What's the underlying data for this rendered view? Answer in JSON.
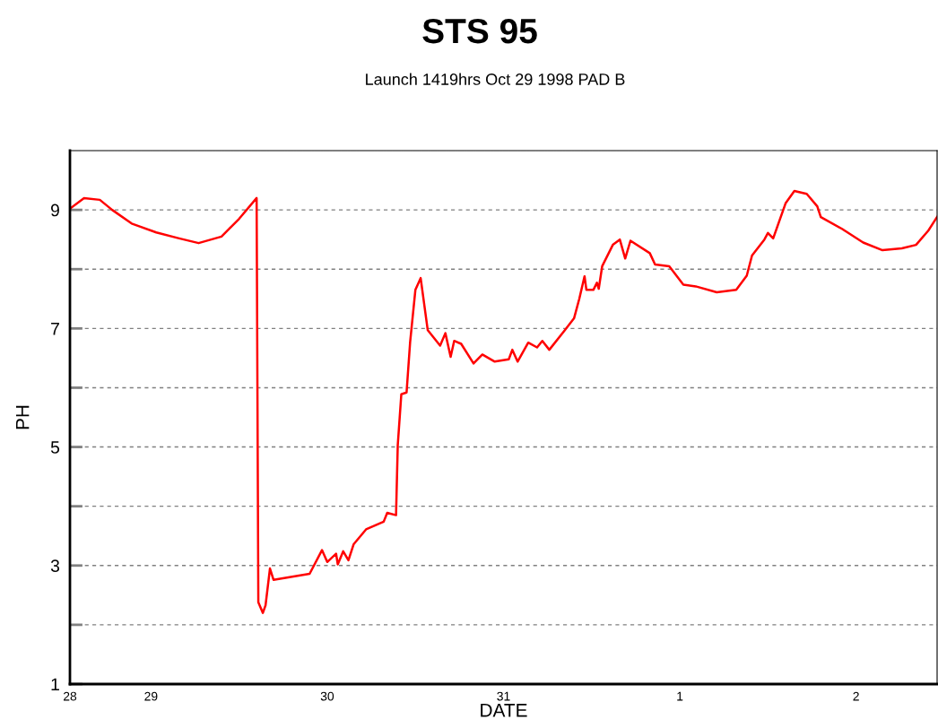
{
  "chart_data": {
    "type": "line",
    "title": "STS 95",
    "subtitle": "Launch 1419hrs Oct 29 1998 PAD B",
    "xlabel": "DATE",
    "ylabel": "PH",
    "x": [
      "1998-10-28T12:58",
      "1998-10-28T14:53",
      "1998-10-28T17:02",
      "1998-10-28T18:43",
      "1998-10-28T21:22",
      "1998-10-29T00:43",
      "1998-10-29T03:50",
      "1998-10-29T06:29",
      "1998-10-29T09:36",
      "1998-10-29T12:00",
      "1998-10-29T14:23",
      "1998-10-29T14:30",
      "1998-10-29T14:37",
      "1998-10-29T15:14",
      "1998-10-29T15:36",
      "1998-10-29T16:12",
      "1998-10-29T16:41",
      "1998-10-29T21:36",
      "1998-10-29T23:17",
      "1998-10-30T00:00",
      "1998-10-30T01:12",
      "1998-10-30T01:26",
      "1998-10-30T02:10",
      "1998-10-30T02:53",
      "1998-10-30T03:36",
      "1998-10-30T05:17",
      "1998-10-30T07:41",
      "1998-10-30T08:10",
      "1998-10-30T09:22",
      "1998-10-30T09:36",
      "1998-10-30T10:05",
      "1998-10-30T10:48",
      "1998-10-30T11:17",
      "1998-10-30T12:00",
      "1998-10-30T12:43",
      "1998-10-30T13:41",
      "1998-10-30T15:22",
      "1998-10-30T16:05",
      "1998-10-30T16:48",
      "1998-10-30T17:17",
      "1998-10-30T18:14",
      "1998-10-30T19:55",
      "1998-10-30T21:07",
      "1998-10-30T22:48",
      "1998-10-31T00:43",
      "1998-10-31T01:12",
      "1998-10-31T01:55",
      "1998-10-31T03:22",
      "1998-10-31T04:34",
      "1998-10-31T05:17",
      "1998-10-31T06:14",
      "1998-10-31T08:24",
      "1998-10-31T09:36",
      "1998-10-31T10:19",
      "1998-10-31T11:02",
      "1998-10-31T11:17",
      "1998-10-31T12:14",
      "1998-10-31T12:43",
      "1998-10-31T12:58",
      "1998-10-31T13:26",
      "1998-10-31T14:53",
      "1998-10-31T15:50",
      "1998-10-31T16:34",
      "1998-10-31T17:17",
      "1998-10-31T19:55",
      "1998-10-31T20:38",
      "1998-10-31T22:34",
      "1998-11-01T00:29",
      "1998-11-01T02:10",
      "1998-11-01T05:02",
      "1998-11-01T07:41",
      "1998-11-01T09:07",
      "1998-11-01T09:50",
      "1998-11-01T11:31",
      "1998-11-01T12:00",
      "1998-11-01T12:43",
      "1998-11-01T14:24",
      "1998-11-01T15:36",
      "1998-11-01T17:17",
      "1998-11-01T18:43",
      "1998-11-01T19:12",
      "1998-11-01T22:05",
      "1998-11-02T00:58",
      "1998-11-02T03:36",
      "1998-11-02T06:14",
      "1998-11-02T08:10",
      "1998-11-02T09:50",
      "1998-11-02T11:02"
    ],
    "series": [
      {
        "color": "#ff0000",
        "values": [
          9.02,
          9.2,
          9.17,
          9.0,
          8.77,
          8.62,
          8.52,
          8.44,
          8.55,
          8.85,
          9.2,
          5.79,
          2.38,
          2.2,
          2.33,
          2.95,
          2.76,
          2.86,
          3.26,
          3.06,
          3.2,
          3.02,
          3.24,
          3.09,
          3.36,
          3.61,
          3.74,
          3.89,
          3.85,
          5.03,
          5.89,
          5.92,
          6.77,
          7.65,
          7.85,
          6.97,
          6.71,
          6.92,
          6.52,
          6.79,
          6.74,
          6.41,
          6.56,
          6.44,
          6.48,
          6.64,
          6.44,
          6.76,
          6.68,
          6.79,
          6.64,
          6.98,
          7.17,
          7.5,
          7.88,
          7.65,
          7.65,
          7.77,
          7.67,
          8.05,
          8.41,
          8.5,
          8.18,
          8.48,
          8.27,
          8.08,
          8.05,
          7.74,
          7.71,
          7.61,
          7.65,
          7.89,
          8.23,
          8.5,
          8.61,
          8.52,
          9.11,
          9.32,
          9.27,
          9.06,
          8.88,
          8.68,
          8.45,
          8.32,
          8.35,
          8.41,
          8.65,
          8.88
        ]
      }
    ],
    "xlim": [
      "1998-10-28T12:58",
      "1998-11-02T11:02"
    ],
    "xticks": [
      {
        "value": "1998-10-28T12:58",
        "label": "28"
      },
      {
        "value": "1998-10-29",
        "label": "29"
      },
      {
        "value": "1998-10-30",
        "label": "30"
      },
      {
        "value": "1998-10-31",
        "label": "31"
      },
      {
        "value": "1998-11-01",
        "label": "1"
      },
      {
        "value": "1998-11-02",
        "label": "2"
      }
    ],
    "ylim": [
      1,
      10
    ],
    "yticks": [
      1,
      {
        "value": 2,
        "label": null
      },
      3,
      {
        "value": 4,
        "label": null
      },
      5,
      {
        "value": 6,
        "label": null
      },
      7,
      {
        "value": 8,
        "label": null
      },
      9
    ],
    "grid": "y",
    "marker": "none",
    "line_style": "solid"
  }
}
